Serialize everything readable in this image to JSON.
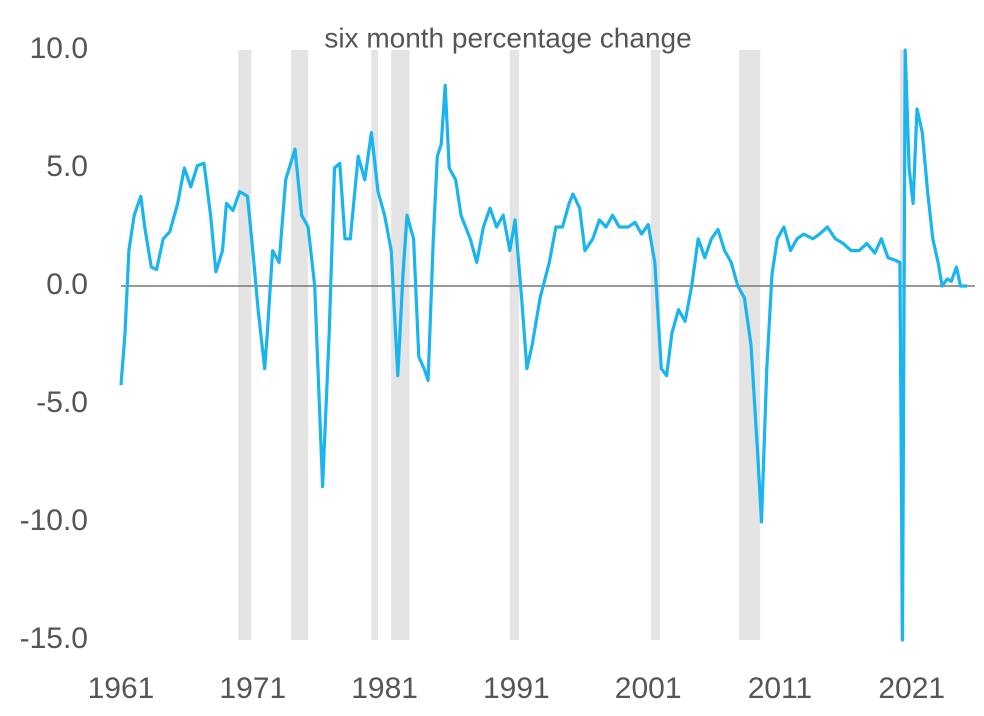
{
  "chart_data": {
    "type": "line",
    "title": "six month percentage change",
    "x": [
      1961.0,
      1961.3,
      1961.6,
      1962.0,
      1962.5,
      1962.8,
      1963.3,
      1963.7,
      1964.2,
      1964.7,
      1965.3,
      1965.8,
      1966.3,
      1966.8,
      1967.3,
      1967.8,
      1968.2,
      1968.7,
      1969.0,
      1969.5,
      1970.0,
      1970.6,
      1971.0,
      1971.4,
      1971.9,
      1972.1,
      1972.5,
      1973.0,
      1973.5,
      1974.2,
      1974.7,
      1975.2,
      1975.7,
      1976.3,
      1976.8,
      1977.2,
      1977.6,
      1978.0,
      1978.4,
      1979.0,
      1979.5,
      1980.0,
      1980.5,
      1981.0,
      1981.5,
      1982.0,
      1982.4,
      1982.7,
      1983.2,
      1983.6,
      1984.0,
      1984.3,
      1984.7,
      1985.0,
      1985.3,
      1985.6,
      1985.9,
      1986.4,
      1986.8,
      1987.5,
      1988.0,
      1988.5,
      1989.0,
      1989.5,
      1990.0,
      1990.5,
      1990.9,
      1991.4,
      1991.8,
      1992.2,
      1992.8,
      1993.5,
      1994.0,
      1994.5,
      1995.0,
      1995.3,
      1995.8,
      1996.2,
      1996.8,
      1997.3,
      1997.8,
      1998.3,
      1998.8,
      1999.5,
      2000.0,
      2000.5,
      2001.0,
      2001.5,
      2002.0,
      2002.4,
      2002.8,
      2003.3,
      2003.8,
      2004.3,
      2004.8,
      2005.3,
      2005.8,
      2006.3,
      2006.8,
      2007.3,
      2007.8,
      2008.3,
      2008.8,
      2009.3,
      2009.6,
      2010.0,
      2010.4,
      2010.8,
      2011.3,
      2011.8,
      2012.3,
      2012.8,
      2013.5,
      2014.0,
      2014.6,
      2015.2,
      2015.8,
      2016.4,
      2017.0,
      2017.6,
      2018.2,
      2018.7,
      2019.2,
      2019.7,
      2020.1,
      2020.3,
      2020.5,
      2020.8,
      2021.1,
      2021.4,
      2021.8,
      2022.2,
      2022.6,
      2023.0,
      2023.3,
      2023.7,
      2024.0,
      2024.4,
      2024.7,
      2025.2
    ],
    "series": [
      {
        "color": "#1ab4ef",
        "values": [
          -4.2,
          -2,
          1.5,
          3,
          3.8,
          2.5,
          0.8,
          0.7,
          2.0,
          2.3,
          3.5,
          5.0,
          4.2,
          5.1,
          5.2,
          3,
          0.6,
          1.5,
          3.5,
          3.2,
          4.0,
          3.8,
          1.5,
          -1.0,
          -3.5,
          -2,
          1.5,
          1.0,
          4.5,
          5.8,
          3,
          2.5,
          0,
          -8.5,
          -2,
          5.0,
          5.2,
          2,
          2,
          5.5,
          4.5,
          6.5,
          4,
          3,
          1.5,
          -3.8,
          0.5,
          3,
          2.0,
          -3.0,
          -3.5,
          -4.0,
          2.0,
          5.5,
          6.0,
          8.5,
          5,
          4.5,
          3,
          2,
          1,
          2.5,
          3.3,
          2.5,
          3.0,
          1.5,
          2.8,
          -0.5,
          -3.5,
          -2.5,
          -0.5,
          1.0,
          2.5,
          2.5,
          3.5,
          3.9,
          3.3,
          1.5,
          2.0,
          2.8,
          2.5,
          3.0,
          2.5,
          2.5,
          2.7,
          2.2,
          2.6,
          1.0,
          -3.5,
          -3.8,
          -2.0,
          -1.0,
          -1.5,
          0,
          2.0,
          1.2,
          2.0,
          2.4,
          1.5,
          1.0,
          0,
          -0.5,
          -2.5,
          -7.0,
          -10.0,
          -3.5,
          0.5,
          2.0,
          2.5,
          1.5,
          2.0,
          2.2,
          2.0,
          2.2,
          2.5,
          2.0,
          1.8,
          1.5,
          1.5,
          1.8,
          1.4,
          2.0,
          1.2,
          1.1,
          1.0,
          -15.0,
          10.0,
          5.0,
          3.5,
          7.5,
          6.5,
          4,
          2.0,
          1.0,
          0,
          0.3,
          0.2,
          0.8,
          0,
          0
        ]
      }
    ],
    "shaded_regions": [
      [
        1969.9,
        1970.9
      ],
      [
        1973.9,
        1975.2
      ],
      [
        1980.0,
        1980.5
      ],
      [
        1981.5,
        1982.9
      ],
      [
        1990.5,
        1991.2
      ],
      [
        2001.2,
        2001.9
      ],
      [
        2007.9,
        2009.5
      ],
      [
        2020.1,
        2020.4
      ]
    ],
    "shade_color": "#e4e4e4",
    "xlim": [
      1961,
      2025.8
    ],
    "xticks": [
      1961,
      1971,
      1981,
      1991,
      2001,
      2011,
      2021
    ],
    "ylim": [
      -15,
      10
    ],
    "yticks": [
      {
        "value": -15,
        "label": "-15.0"
      },
      {
        "value": -10,
        "label": "-10.0"
      },
      {
        "value": -5,
        "label": "-5.0"
      },
      {
        "value": 0,
        "label": "0.0"
      },
      {
        "value": 5,
        "label": "5.0"
      },
      {
        "value": 10,
        "label": "10.0"
      }
    ],
    "zero_line": true,
    "grid": false
  }
}
